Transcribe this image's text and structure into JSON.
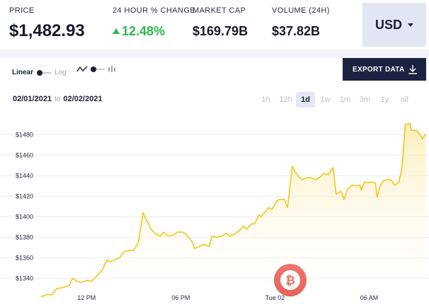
{
  "stats": {
    "price": {
      "label": "PRICE",
      "value": "$1,482.93"
    },
    "change": {
      "label": "24 HOUR % CHANGE",
      "value": "12.48%"
    },
    "market_cap": {
      "label": "MARKET CAP",
      "value": "$169.79B"
    },
    "volume": {
      "label": "VOLUME (24H)",
      "value": "$37.82B"
    }
  },
  "currency": {
    "selected": "USD"
  },
  "toolbar": {
    "scale_linear": "Linear",
    "scale_log": "Log",
    "export_label": "EXPORT DATA"
  },
  "range": {
    "from": "02/01/2021",
    "to_word": "to",
    "to": "02/02/2021",
    "periods": [
      "1h",
      "12h",
      "1d",
      "1w",
      "1m",
      "3m",
      "1y",
      "all"
    ],
    "active": "1d"
  },
  "colors": {
    "line": "#f5c518",
    "fill_top": "#fde9a6",
    "up": "#2db84d",
    "accent": "#1c2340",
    "watermark": "#e2342b"
  },
  "icons": [
    "line-chart-icon",
    "candlestick-icon",
    "download-icon",
    "caret-down-icon",
    "bitcoin-logo"
  ],
  "chart_data": {
    "type": "area",
    "y_ticks": [
      "$1340",
      "$1360",
      "$1380",
      "$1400",
      "$1420",
      "$1440",
      "$1460",
      "$1480"
    ],
    "x_ticks": [
      {
        "label": "12 PM",
        "t": 3
      },
      {
        "label": "06 PM",
        "t": 9
      },
      {
        "label": "Tue 02",
        "t": 15
      },
      {
        "label": "06 AM",
        "t": 21
      }
    ],
    "ylim": [
      1323,
      1501
    ],
    "xlim": [
      0.1,
      24
    ],
    "grid": "horizontal",
    "series": [
      {
        "values": [
          [
            0.1,
            1322
          ],
          [
            0.5,
            1324
          ],
          [
            0.8,
            1324
          ],
          [
            1.1,
            1330
          ],
          [
            1.5,
            1331
          ],
          [
            1.9,
            1333
          ],
          [
            2.1,
            1340
          ],
          [
            2.4,
            1337
          ],
          [
            2.7,
            1336
          ],
          [
            3.0,
            1338
          ],
          [
            3.3,
            1337
          ],
          [
            3.7,
            1343
          ],
          [
            4.0,
            1348
          ],
          [
            4.3,
            1358
          ],
          [
            4.5,
            1356
          ],
          [
            4.8,
            1358
          ],
          [
            5.1,
            1360
          ],
          [
            5.4,
            1366
          ],
          [
            5.7,
            1367
          ],
          [
            6.0,
            1367
          ],
          [
            6.3,
            1375
          ],
          [
            6.6,
            1404
          ],
          [
            6.8,
            1397
          ],
          [
            7.1,
            1388
          ],
          [
            7.4,
            1383
          ],
          [
            7.7,
            1381
          ],
          [
            7.9,
            1385
          ],
          [
            8.2,
            1381
          ],
          [
            8.5,
            1382
          ],
          [
            8.8,
            1385
          ],
          [
            9.1,
            1385
          ],
          [
            9.4,
            1382
          ],
          [
            9.7,
            1376
          ],
          [
            9.9,
            1369
          ],
          [
            10.2,
            1371
          ],
          [
            10.5,
            1373
          ],
          [
            10.8,
            1371
          ],
          [
            11.0,
            1381
          ],
          [
            11.3,
            1380
          ],
          [
            11.6,
            1381
          ],
          [
            11.9,
            1384
          ],
          [
            12.1,
            1381
          ],
          [
            12.4,
            1383
          ],
          [
            12.7,
            1386
          ],
          [
            13.0,
            1391
          ],
          [
            13.2,
            1388
          ],
          [
            13.5,
            1393
          ],
          [
            13.7,
            1393
          ],
          [
            14.0,
            1402
          ],
          [
            14.1,
            1400
          ],
          [
            14.4,
            1405
          ],
          [
            14.6,
            1409
          ],
          [
            14.8,
            1407
          ],
          [
            15.1,
            1415
          ],
          [
            15.3,
            1417
          ],
          [
            15.6,
            1417
          ],
          [
            15.8,
            1409
          ],
          [
            16.1,
            1449
          ],
          [
            16.4,
            1441
          ],
          [
            16.7,
            1436
          ],
          [
            17.0,
            1438
          ],
          [
            17.3,
            1438
          ],
          [
            17.6,
            1436
          ],
          [
            17.9,
            1439
          ],
          [
            18.1,
            1442
          ],
          [
            18.4,
            1441
          ],
          [
            18.7,
            1448
          ],
          [
            18.9,
            1422
          ],
          [
            19.2,
            1425
          ],
          [
            19.4,
            1417
          ],
          [
            19.6,
            1426
          ],
          [
            19.9,
            1431
          ],
          [
            20.2,
            1430
          ],
          [
            20.4,
            1431
          ],
          [
            20.5,
            1426
          ],
          [
            20.7,
            1434
          ],
          [
            20.9,
            1433
          ],
          [
            21.1,
            1434
          ],
          [
            21.4,
            1433
          ],
          [
            21.5,
            1419
          ],
          [
            21.7,
            1430
          ],
          [
            21.9,
            1435
          ],
          [
            22.1,
            1436
          ],
          [
            22.4,
            1436
          ],
          [
            22.6,
            1431
          ],
          [
            22.7,
            1431
          ],
          [
            22.9,
            1434
          ],
          [
            23.1,
            1449
          ],
          [
            23.3,
            1490
          ],
          [
            23.6,
            1491
          ],
          [
            23.7,
            1484
          ],
          [
            24.0,
            1484
          ],
          [
            24.2,
            1481
          ],
          [
            24.4,
            1476
          ],
          [
            24.6,
            1481
          ]
        ]
      }
    ]
  }
}
